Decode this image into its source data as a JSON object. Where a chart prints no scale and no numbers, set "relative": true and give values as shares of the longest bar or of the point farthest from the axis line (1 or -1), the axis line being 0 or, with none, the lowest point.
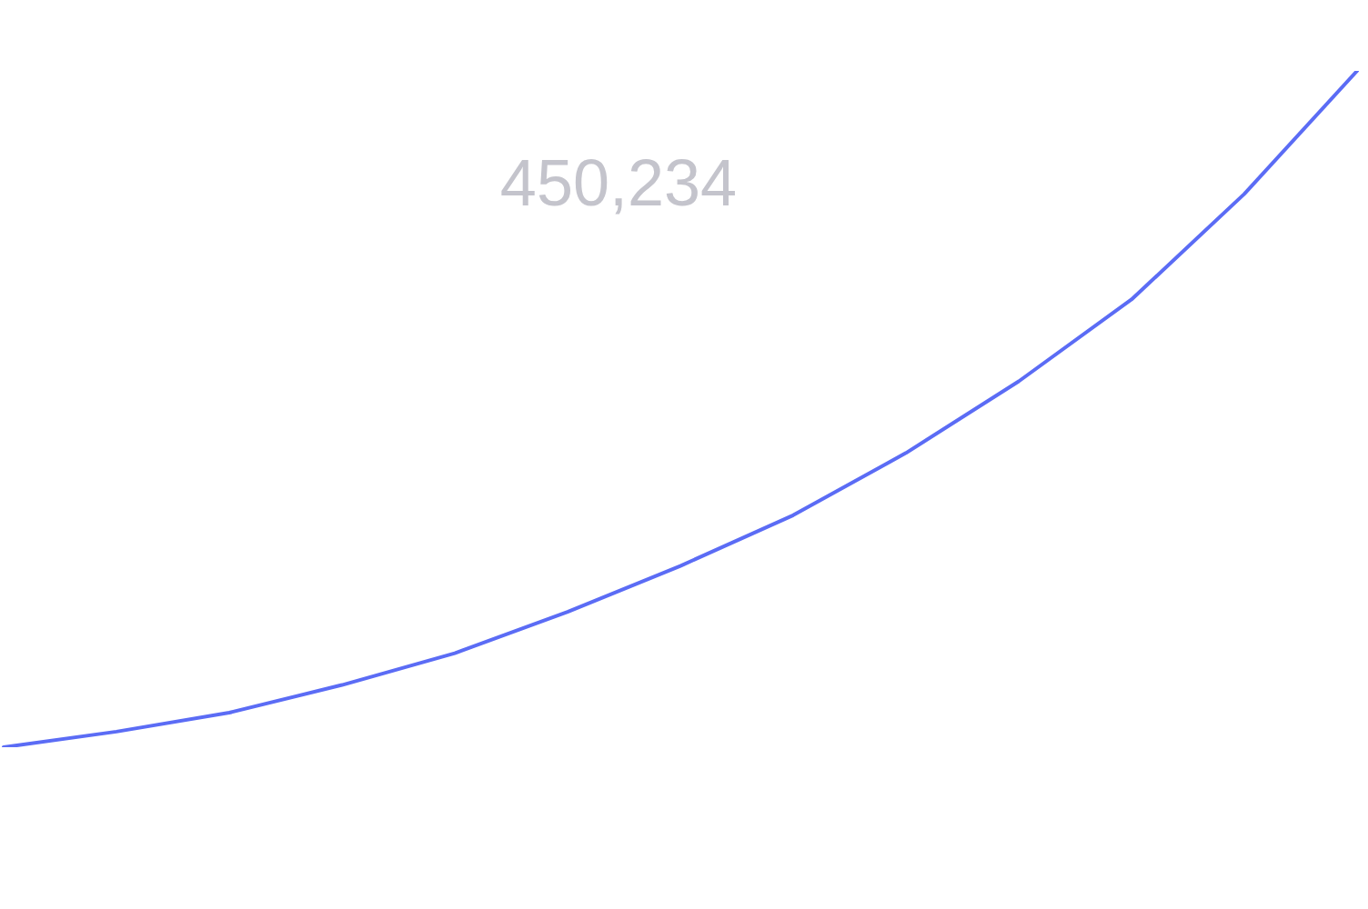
{
  "chart_data": {
    "type": "line",
    "relative": true,
    "categories": [
      null,
      null,
      null,
      null,
      null,
      null,
      null,
      null,
      null,
      null,
      null,
      null,
      null
    ],
    "series": [
      {
        "color": "#5b6cf5",
        "values": [
          0,
          0.023,
          0.051,
          0.092,
          0.139,
          0.2,
          0.268,
          0.343,
          0.435,
          0.541,
          0.662,
          0.818,
          1
        ]
      }
    ],
    "annotations": [
      "450,234"
    ],
    "marker": "none",
    "legend": false
  }
}
